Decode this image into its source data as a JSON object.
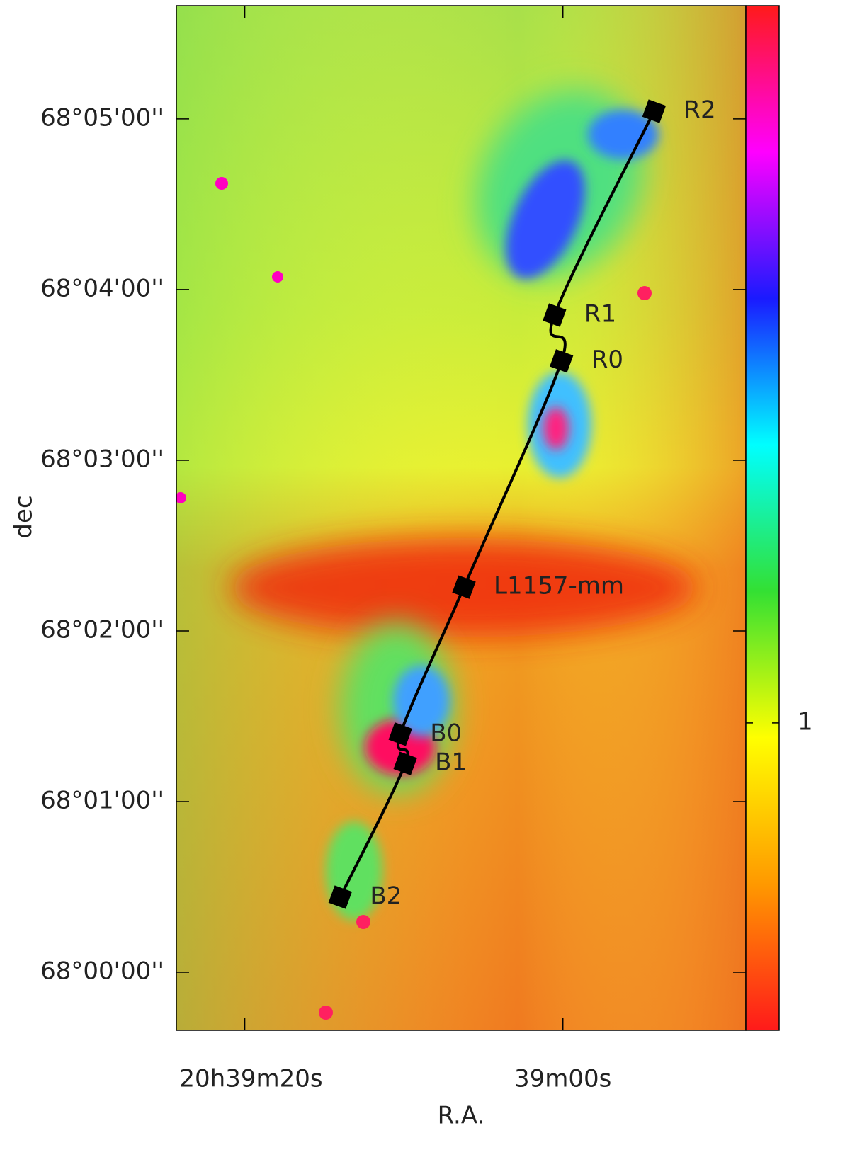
{
  "chart_data": {
    "type": "image",
    "xlabel": "R.A.",
    "ylabel": "dec",
    "xlim": [
      24.3,
      -11.5
    ],
    "xticks": [
      {
        "value": 20,
        "label": "20h39m20s"
      },
      {
        "value": 0,
        "label": "39m00s"
      }
    ],
    "ylim": [
      -20.4,
      339.8
    ],
    "yticks": [
      {
        "value": 0,
        "label": "68°00'00''"
      },
      {
        "value": 60,
        "label": "68°01'00''"
      },
      {
        "value": 120,
        "label": "68°02'00''"
      },
      {
        "value": 180,
        "label": "68°03'00''"
      },
      {
        "value": 240,
        "label": "68°04'00''"
      },
      {
        "value": 300,
        "label": "68°05'00''"
      }
    ],
    "series": [
      {
        "color": "#000000",
        "labels": [
          "R2",
          "R1",
          "R0",
          "L1157-mm",
          "B0",
          "B1",
          "B2"
        ],
        "x": [
          -5.73,
          0.53,
          0.09,
          6.22,
          10.22,
          9.91,
          14.0
        ],
        "values": [
          302.7,
          231.0,
          214.9,
          135.4,
          83.7,
          73.4,
          26.4
        ]
      }
    ],
    "colorbar": {
      "lim": [
        0.4,
        2.4
      ],
      "ticks": [
        1
      ],
      "colors": [
        "#ff1a1a",
        "#ff9900",
        "#ffff00",
        "#33e033",
        "#00ffff",
        "#1a1aff",
        "#ff00ff",
        "#ff1a1a"
      ]
    }
  }
}
